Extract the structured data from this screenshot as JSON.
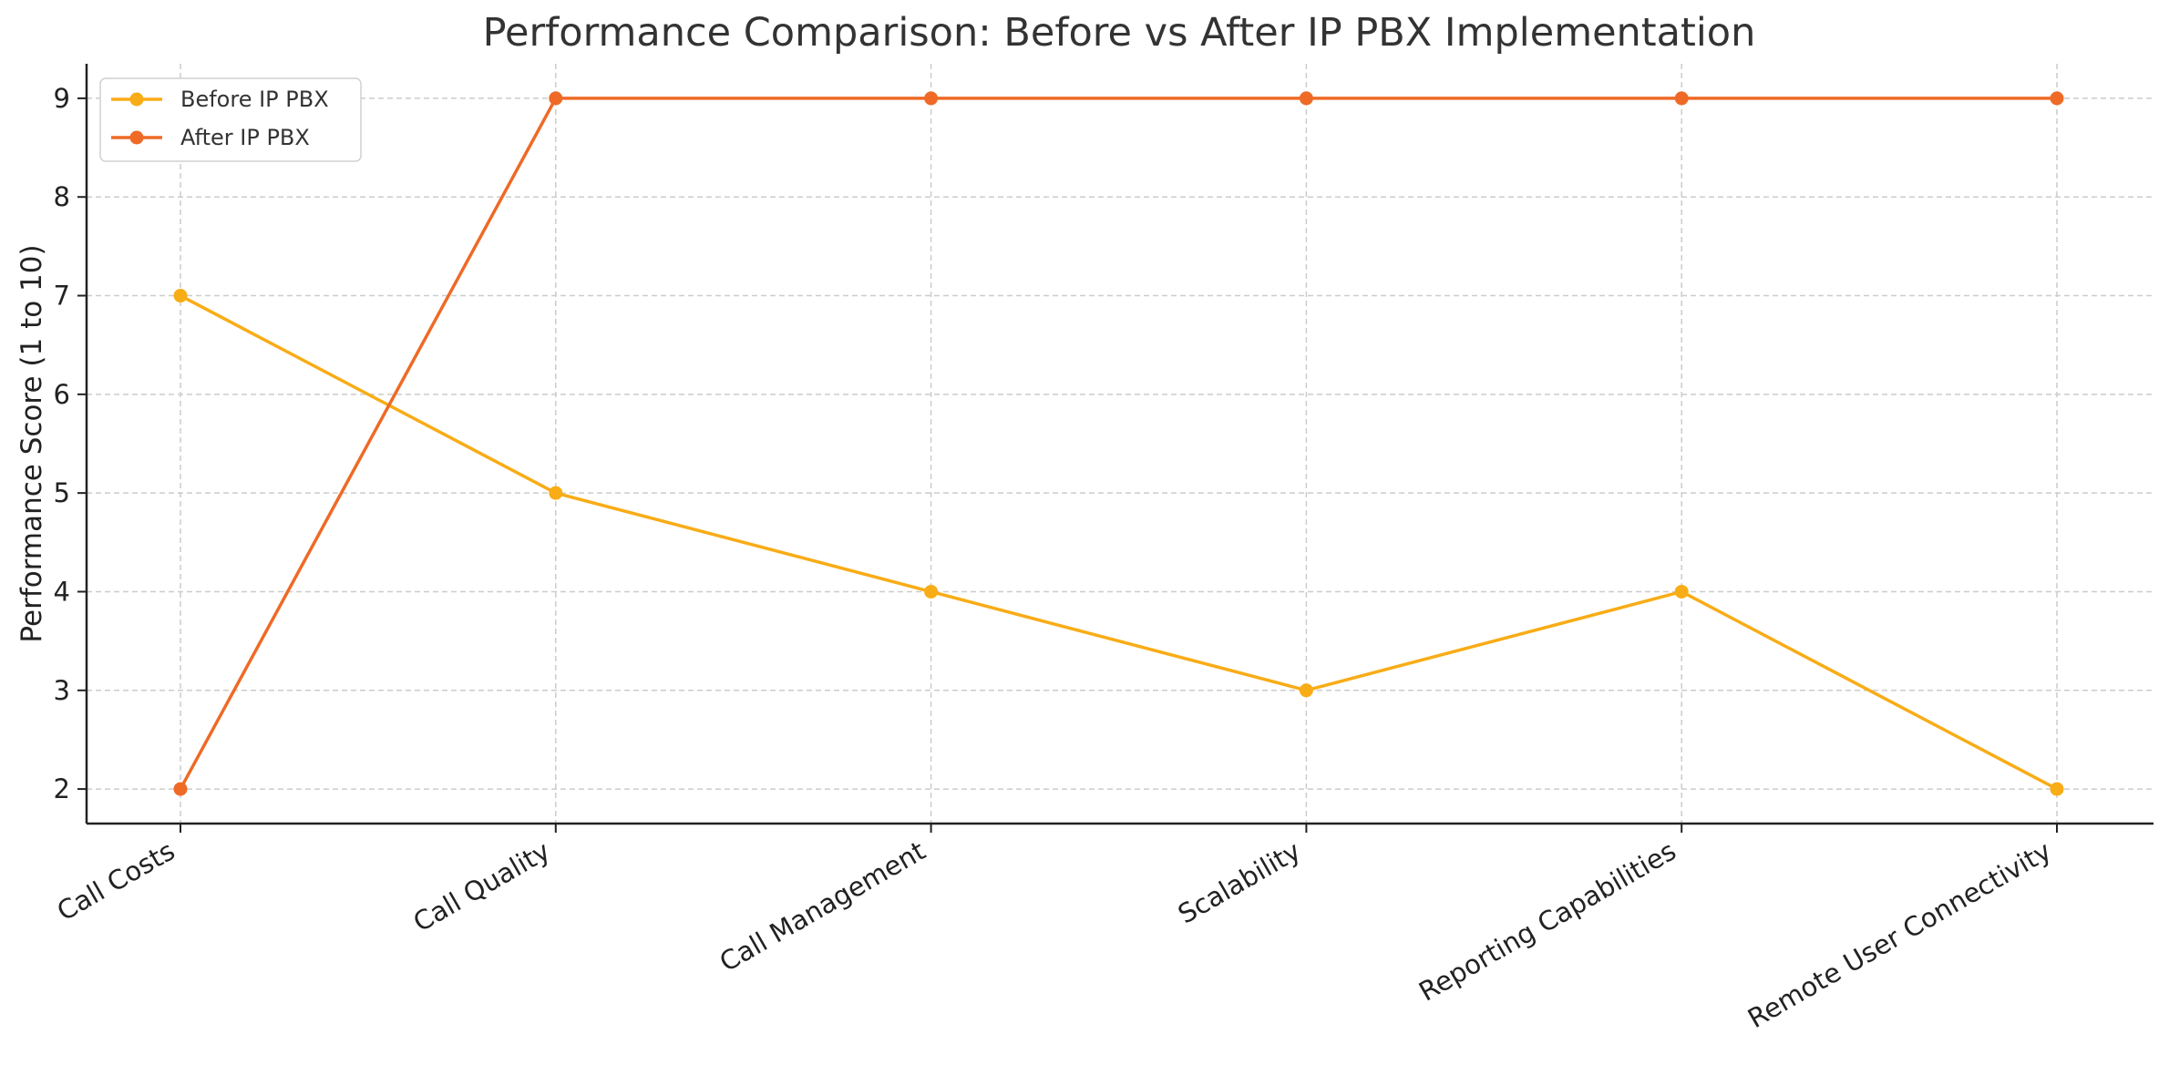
{
  "chart_data": {
    "type": "line",
    "title": "Performance Comparison: Before vs After IP PBX Implementation",
    "xlabel": "",
    "ylabel": "Performance Score (1 to 10)",
    "categories": [
      "Call Costs",
      "Call Quality",
      "Call Management",
      "Scalability",
      "Reporting Capabilities",
      "Remote User Connectivity"
    ],
    "yticks": [
      2,
      3,
      4,
      5,
      6,
      7,
      8,
      9
    ],
    "ylim": [
      1.65,
      9.35
    ],
    "grid": true,
    "legend_position": "top-left",
    "series": [
      {
        "name": "Before IP PBX",
        "color": "#F8AC16",
        "values": [
          7,
          5,
          4,
          3,
          4,
          2
        ]
      },
      {
        "name": "After IP PBX",
        "color": "#EE6A26",
        "values": [
          2,
          9,
          9,
          9,
          9,
          9
        ]
      }
    ]
  }
}
